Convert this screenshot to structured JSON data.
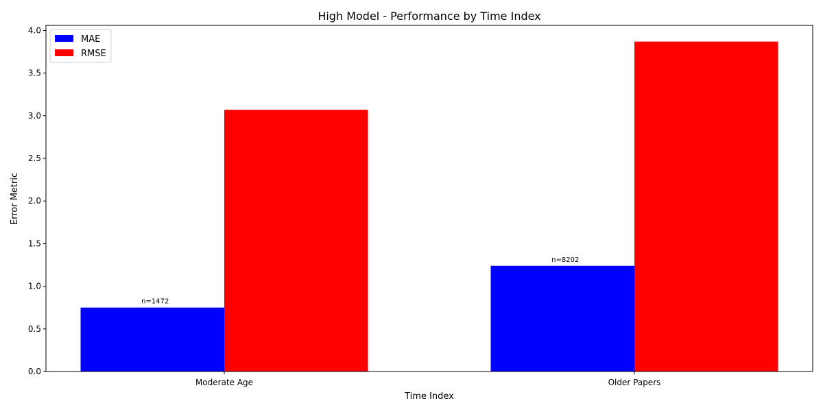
{
  "chart_data": {
    "type": "bar",
    "title": "High Model - Performance by Time Index",
    "xlabel": "Time Index",
    "ylabel": "Error Metric",
    "categories": [
      "Moderate Age",
      "Older Papers"
    ],
    "series": [
      {
        "name": "MAE",
        "values": [
          0.75,
          1.24
        ],
        "color": "#0000ff"
      },
      {
        "name": "RMSE",
        "values": [
          3.07,
          3.87
        ],
        "color": "#ff0000"
      }
    ],
    "annotations": [
      "n=1472",
      "n=8202"
    ],
    "ylim": [
      0,
      4.06
    ],
    "yticks": [
      0.0,
      0.5,
      1.0,
      1.5,
      2.0,
      2.5,
      3.0,
      3.5,
      4.0
    ],
    "ytick_labels": [
      "0.0",
      "0.5",
      "1.0",
      "1.5",
      "2.0",
      "2.5",
      "3.0",
      "3.5",
      "4.0"
    ],
    "grid": false,
    "legend_position": "top-left"
  }
}
